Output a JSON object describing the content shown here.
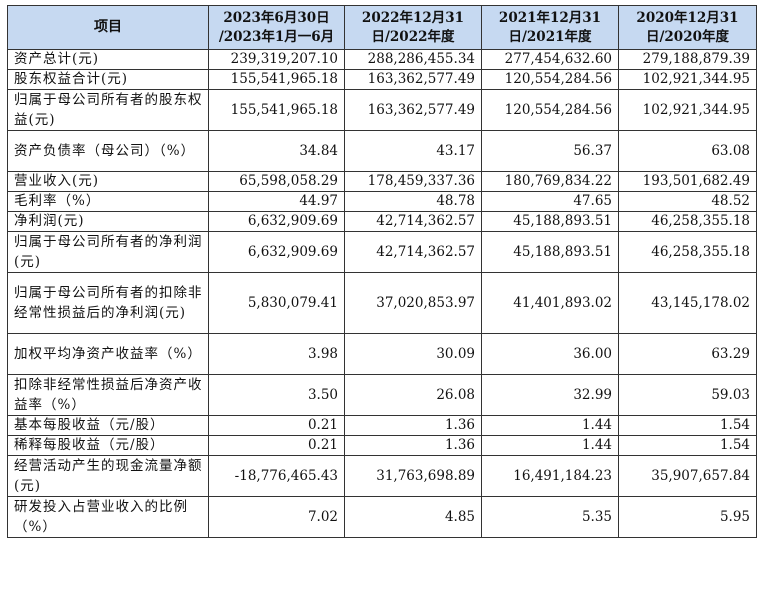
{
  "table": {
    "headers": [
      [
        "项目"
      ],
      [
        "2023年6月30日",
        "/2023年1月一6月"
      ],
      [
        "2022年12月31",
        "日/2022年度"
      ],
      [
        "2021年12月31",
        "日/2021年度"
      ],
      [
        "2020年12月31",
        "日/2020年度"
      ]
    ],
    "rows": [
      {
        "label": "资产总计(元)",
        "values": [
          "239,319,207.10",
          "288,286,455.34",
          "277,454,632.60",
          "279,188,879.39"
        ]
      },
      {
        "label": "股东权益合计(元)",
        "values": [
          "155,541,965.18",
          "163,362,577.49",
          "120,554,284.56",
          "102,921,344.95"
        ]
      },
      {
        "label": "归属于母公司所有者的股东权益(元)",
        "values": [
          "155,541,965.18",
          "163,362,577.49",
          "120,554,284.56",
          "102,921,344.95"
        ]
      },
      {
        "label": "资产负债率（母公司）（%）",
        "values": [
          "34.84",
          "43.17",
          "56.37",
          "63.08"
        ]
      },
      {
        "label": "营业收入(元)",
        "values": [
          "65,598,058.29",
          "178,459,337.36",
          "180,769,834.22",
          "193,501,682.49"
        ]
      },
      {
        "label": "毛利率（%）",
        "values": [
          "44.97",
          "48.78",
          "47.65",
          "48.52"
        ]
      },
      {
        "label": "净利润(元)",
        "values": [
          "6,632,909.69",
          "42,714,362.57",
          "45,188,893.51",
          "46,258,355.18"
        ]
      },
      {
        "label": "归属于母公司所有者的净利润(元)",
        "values": [
          "6,632,909.69",
          "42,714,362.57",
          "45,188,893.51",
          "46,258,355.18"
        ]
      },
      {
        "label": "归属于母公司所有者的扣除非经常性损益后的净利润(元)",
        "values": [
          "5,830,079.41",
          "37,020,853.97",
          "41,401,893.02",
          "43,145,178.02"
        ]
      },
      {
        "label": "加权平均净资产收益率（%）",
        "values": [
          "3.98",
          "30.09",
          "36.00",
          "63.29"
        ]
      },
      {
        "label": "扣除非经常性损益后净资产收益率（%）",
        "values": [
          "3.50",
          "26.08",
          "32.99",
          "59.03"
        ]
      },
      {
        "label": "基本每股收益（元/股）",
        "values": [
          "0.21",
          "1.36",
          "1.44",
          "1.54"
        ]
      },
      {
        "label": "稀释每股收益（元/股）",
        "values": [
          "0.21",
          "1.36",
          "1.44",
          "1.54"
        ]
      },
      {
        "label": "经营活动产生的现金流量净额(元)",
        "values": [
          "-18,776,465.43",
          "31,763,698.89",
          "16,491,184.23",
          "35,907,657.84"
        ]
      },
      {
        "label": "研发投入占营业收入的比例（%）",
        "values": [
          "7.02",
          "4.85",
          "5.35",
          "5.95"
        ]
      }
    ]
  },
  "colors": {
    "header_background": "#c6d9f1",
    "border": "#333333",
    "text": "#111111"
  }
}
